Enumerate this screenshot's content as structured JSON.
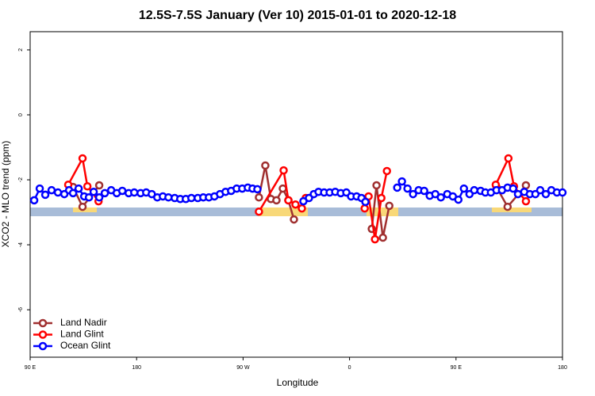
{
  "chart_data": {
    "type": "line",
    "title": "12.5S-7.5S January (Ver 10)   2015-01-01 to 2020-12-18",
    "x_label": "Longitude",
    "y_label": "XCO2 - MLO trend (ppm)",
    "xlim": [
      90,
      540
    ],
    "xticks": [
      {
        "value": 90,
        "label": "90 E"
      },
      {
        "value": 180,
        "label": "180"
      },
      {
        "value": 270,
        "label": "90 W"
      },
      {
        "value": 360,
        "label": "0"
      },
      {
        "value": 450,
        "label": "90 E"
      },
      {
        "value": 540,
        "label": "180"
      }
    ],
    "ylim": [
      -7.46,
      2.56
    ],
    "yticks": [
      2,
      0,
      -2,
      -4,
      -6
    ],
    "legend": "bottom-left",
    "series": [
      {
        "name": "Land Nadir",
        "color": "#a03030",
        "x": [
          126.3,
          134.3,
          148.4,
          200,
          283.4,
          288.8,
          293.5,
          298.2,
          303.6,
          308.3,
          313.0,
          350,
          378.8,
          382.8,
          388.2,
          393.6,
          450,
          484.2,
          493.6,
          509.1
        ],
        "values": [
          -2.22,
          -2.83,
          -2.17,
          null,
          -2.54,
          -1.56,
          -2.59,
          -2.63,
          -2.27,
          -2.63,
          -3.22,
          null,
          -3.51,
          -2.17,
          -3.78,
          -2.8,
          null,
          -2.22,
          -2.83,
          -2.17
        ]
      },
      {
        "name": "Land Glint",
        "color": "#ff0000",
        "x": [
          122.2,
          134.3,
          138.4,
          147.8,
          200,
          283.4,
          304.3,
          308.3,
          314.3,
          319.7,
          323.0,
          350,
          372.8,
          376.1,
          381.5,
          386.9,
          391.6,
          450,
          483.6,
          494.3,
          499.0,
          509.1
        ],
        "values": [
          -2.15,
          -1.34,
          -2.2,
          -2.66,
          null,
          -2.98,
          -1.71,
          -2.63,
          -2.76,
          -2.88,
          -2.56,
          null,
          -2.88,
          -2.51,
          -3.83,
          -2.56,
          -1.73,
          null,
          -2.15,
          -1.34,
          -2.2,
          -2.66
        ]
      },
      {
        "name": "Ocean Glint",
        "color": "#0000ff",
        "x": [
          93.4,
          98.1,
          102.8,
          108.1,
          113.5,
          118.9,
          122.9,
          126.3,
          131.0,
          135.7,
          139.7,
          143.7,
          148.4,
          153.1,
          158.5,
          163.2,
          167.9,
          173.3,
          178.0,
          183.4,
          188.1,
          192.8,
          197.5,
          202.2,
          206.9,
          212.2,
          216.9,
          221.6,
          226.3,
          231.7,
          236.4,
          241.1,
          245.8,
          250.5,
          255.2,
          259.9,
          264.6,
          269.3,
          274.0,
          278.0,
          282.1,
          300,
          321.0,
          325.7,
          329.8,
          333.8,
          338.5,
          343.2,
          347.9,
          352.6,
          357.3,
          361.3,
          366.0,
          370.1,
          373.4,
          385,
          400.3,
          404.3,
          409.0,
          413.7,
          418.4,
          423.1,
          427.8,
          432.5,
          437.2,
          442.6,
          447.3,
          452.0,
          456.7,
          461.4,
          465.4,
          470.8,
          474.8,
          479.5,
          484.2,
          488.9,
          493.6,
          498.3,
          502.4,
          507.7,
          512.4,
          517.1,
          521.2,
          525.9,
          530.6,
          535.3,
          540.0
        ],
        "values": [
          -2.63,
          -2.27,
          -2.46,
          -2.32,
          -2.39,
          -2.44,
          -2.32,
          -2.41,
          -2.27,
          -2.51,
          -2.54,
          -2.37,
          -2.54,
          -2.41,
          -2.32,
          -2.41,
          -2.34,
          -2.41,
          -2.39,
          -2.41,
          -2.39,
          -2.44,
          -2.54,
          -2.51,
          -2.54,
          -2.56,
          -2.59,
          -2.59,
          -2.56,
          -2.56,
          -2.54,
          -2.54,
          -2.51,
          -2.44,
          -2.37,
          -2.34,
          -2.27,
          -2.27,
          -2.24,
          -2.27,
          -2.29,
          null,
          -2.66,
          -2.56,
          -2.44,
          -2.37,
          -2.39,
          -2.39,
          -2.37,
          -2.41,
          -2.39,
          -2.51,
          -2.51,
          -2.56,
          -2.68,
          null,
          -2.24,
          -2.05,
          -2.27,
          -2.44,
          -2.32,
          -2.34,
          -2.49,
          -2.44,
          -2.54,
          -2.44,
          -2.51,
          -2.61,
          -2.27,
          -2.44,
          -2.32,
          -2.34,
          -2.39,
          -2.39,
          -2.32,
          -2.32,
          -2.24,
          -2.27,
          -2.44,
          -2.37,
          -2.44,
          -2.44,
          -2.32,
          -2.44,
          -2.32,
          -2.39,
          -2.39
        ]
      }
    ]
  }
}
